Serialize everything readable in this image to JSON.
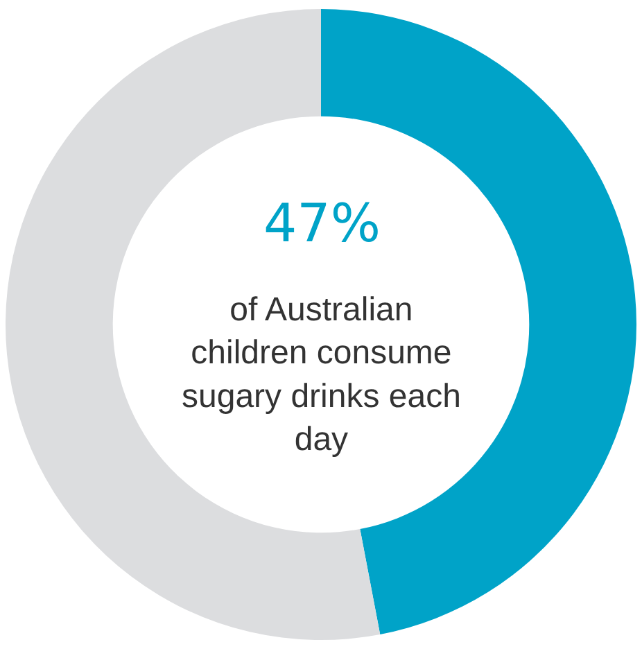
{
  "chart_data": {
    "type": "donut",
    "categories": [
      null,
      null
    ],
    "values": [
      47,
      53
    ],
    "colors": [
      "#00a3c8",
      "#dcdddf"
    ],
    "value_labels": [
      "47%",
      null
    ],
    "annotations": [
      "of Australian children consume sugary drinks each day"
    ],
    "legend": false
  }
}
